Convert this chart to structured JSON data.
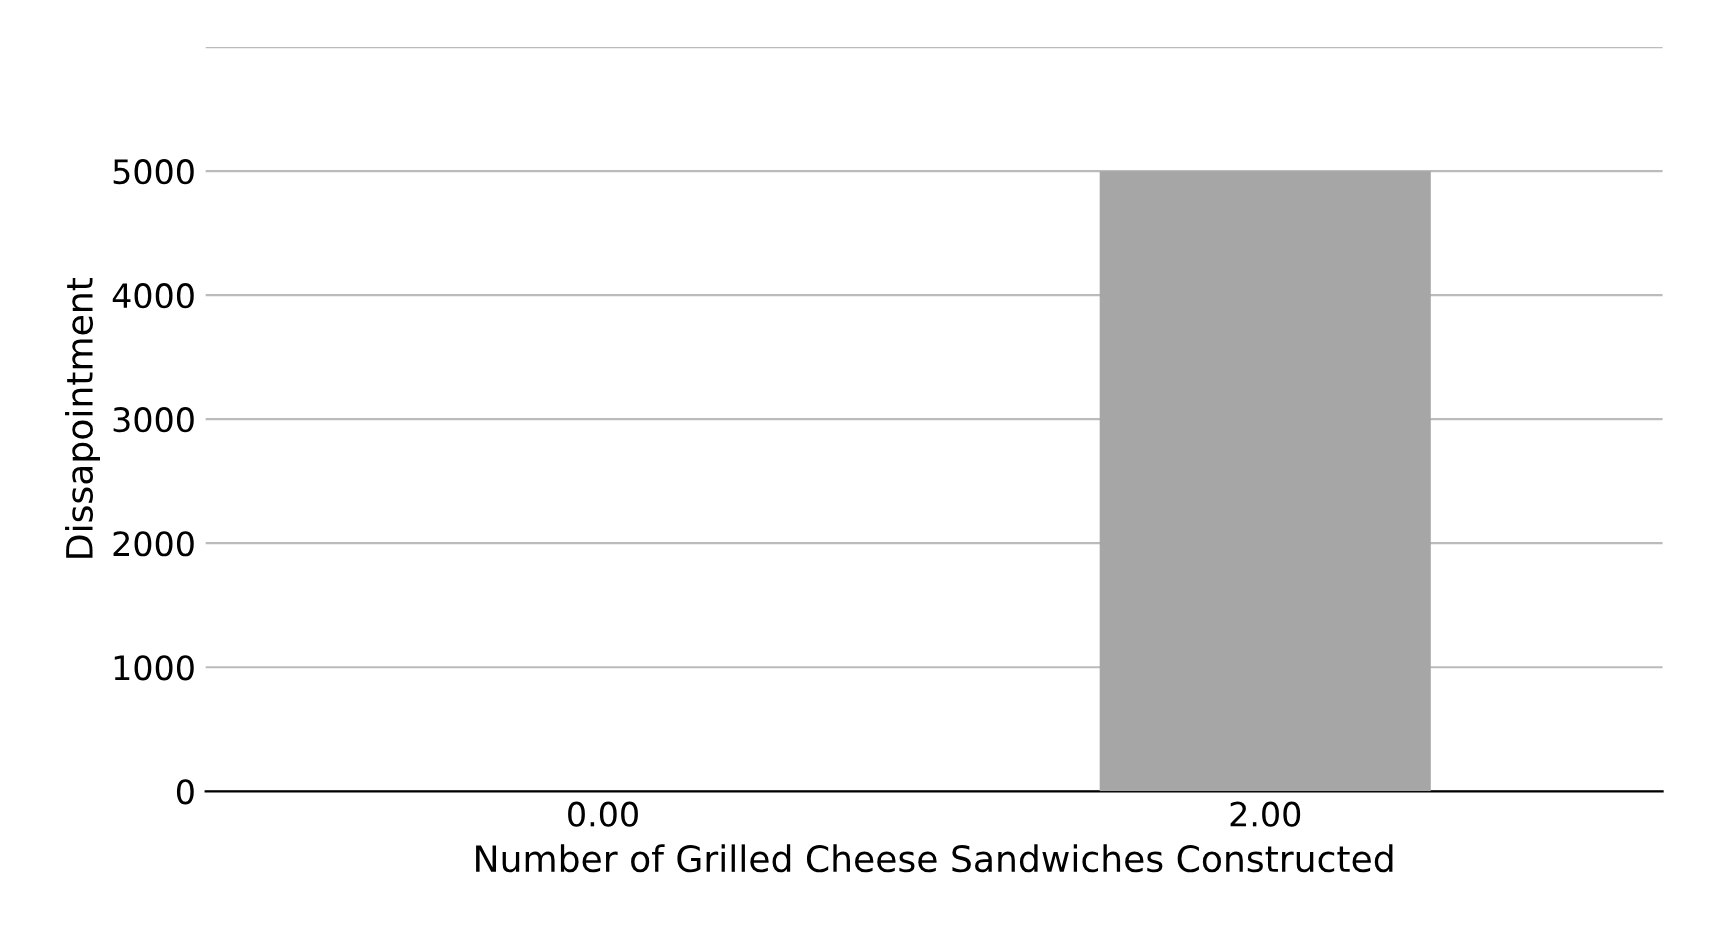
{
  "chart_data": {
    "type": "bar",
    "xlabel": "Number of Grilled Cheese Sandwiches Constructed",
    "ylabel": "Dissapointment",
    "categories": [
      "0.00",
      "2.00"
    ],
    "values": [
      0,
      5000
    ],
    "color": "#a6a6a6",
    "ylim": [
      0,
      6000
    ],
    "yticks": [
      0,
      1000,
      2000,
      3000,
      4000,
      5000,
      {
        "value": 6000,
        "label": null
      }
    ],
    "grid": "y"
  }
}
